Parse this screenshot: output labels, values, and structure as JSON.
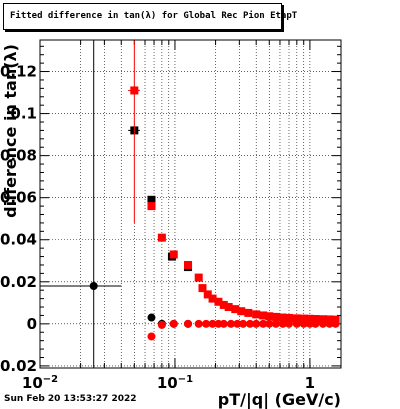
{
  "title": "Fitted difference in tan(λ) for Global Rec Pion EtapT",
  "footer": "Sun Feb 20 13:53:27 2022",
  "chart_data": {
    "type": "scatter",
    "title": "Fitted difference in tan(λ) for Global Rec Pion EtapT",
    "xlabel": "pT/|q| (GeV/c)",
    "ylabel": "difference in tan(λ)",
    "x_scale": "log",
    "xlim": [
      0.01,
      1.7
    ],
    "ylim": [
      -0.021,
      0.135
    ],
    "grid": true,
    "x_ticks": [
      {
        "label": "10",
        "sup": "−2",
        "value": 0.01
      },
      {
        "label": "10",
        "sup": "−1",
        "value": 0.1
      },
      {
        "label": "1",
        "sup": "",
        "value": 1
      }
    ],
    "y_ticks": [
      -0.02,
      0,
      0.02,
      0.04,
      0.06,
      0.08,
      0.1,
      0.12
    ],
    "y_tick_labels": [
      "−0.02",
      "0",
      "0.02",
      "0.04",
      "0.06",
      "0.08",
      "0.1",
      "0.12"
    ],
    "series": [
      {
        "color": "#000000",
        "marker": "circle",
        "points": [
          {
            "x": 0.025,
            "y": 0.018,
            "xlo": 0.01,
            "xhi": 0.04,
            "ylo": -0.021,
            "yhi": 0.135
          }
        ]
      },
      {
        "color": "#000000",
        "marker": "square",
        "points": [
          {
            "x": 0.05,
            "y": 0.092,
            "xlo": 0.045,
            "xhi": 0.055
          },
          {
            "x": 0.067,
            "y": 0.059,
            "xlo": 0.063,
            "xhi": 0.071
          },
          {
            "x": 0.095,
            "y": 0.032,
            "xlo": 0.089,
            "xhi": 0.101
          },
          {
            "x": 0.125,
            "y": 0.027,
            "xlo": 0.117,
            "xhi": 0.133
          }
        ]
      },
      {
        "color": "#000000",
        "marker": "circle",
        "points": [
          {
            "x": 0.067,
            "y": 0.003,
            "xlo": 0.063,
            "xhi": 0.071
          },
          {
            "x": 0.08,
            "y": 0.0,
            "xlo": 0.075,
            "xhi": 0.085
          },
          {
            "x": 0.098,
            "y": 0.0,
            "xlo": 0.092,
            "xhi": 0.104
          },
          {
            "x": 0.125,
            "y": 0.0,
            "xlo": 0.117,
            "xhi": 0.133
          }
        ]
      },
      {
        "color": "#ff0000",
        "marker": "square",
        "points": [
          {
            "x": 0.05,
            "y": 0.111,
            "xlo": 0.045,
            "xhi": 0.055,
            "ylo": 0.048,
            "yhi": 0.135
          },
          {
            "x": 0.067,
            "y": 0.056,
            "xlo": 0.063,
            "xhi": 0.071
          },
          {
            "x": 0.08,
            "y": 0.041,
            "xlo": 0.075,
            "xhi": 0.085
          },
          {
            "x": 0.098,
            "y": 0.033,
            "xlo": 0.092,
            "xhi": 0.104
          },
          {
            "x": 0.125,
            "y": 0.028,
            "xlo": 0.117,
            "xhi": 0.133
          },
          {
            "x": 0.15,
            "y": 0.022
          },
          {
            "x": 0.16,
            "y": 0.017
          },
          {
            "x": 0.175,
            "y": 0.014
          },
          {
            "x": 0.19,
            "y": 0.012
          },
          {
            "x": 0.21,
            "y": 0.0105
          },
          {
            "x": 0.23,
            "y": 0.009
          },
          {
            "x": 0.25,
            "y": 0.008
          },
          {
            "x": 0.28,
            "y": 0.007
          },
          {
            "x": 0.31,
            "y": 0.006
          },
          {
            "x": 0.35,
            "y": 0.0052
          },
          {
            "x": 0.4,
            "y": 0.0045
          },
          {
            "x": 0.45,
            "y": 0.004
          },
          {
            "x": 0.5,
            "y": 0.0036
          },
          {
            "x": 0.56,
            "y": 0.0033
          },
          {
            "x": 0.63,
            "y": 0.003
          },
          {
            "x": 0.7,
            "y": 0.0028
          },
          {
            "x": 0.8,
            "y": 0.0026
          },
          {
            "x": 0.9,
            "y": 0.0025
          },
          {
            "x": 1.0,
            "y": 0.0024
          },
          {
            "x": 1.1,
            "y": 0.0023
          },
          {
            "x": 1.25,
            "y": 0.0022
          },
          {
            "x": 1.4,
            "y": 0.0021
          },
          {
            "x": 1.55,
            "y": 0.002
          }
        ]
      },
      {
        "color": "#ff0000",
        "marker": "circle",
        "points": [
          {
            "x": 0.067,
            "y": -0.006
          },
          {
            "x": 0.08,
            "y": -0.0005
          },
          {
            "x": 0.098,
            "y": 0.0
          },
          {
            "x": 0.125,
            "y": 0.0
          },
          {
            "x": 0.15,
            "y": 0.0
          },
          {
            "x": 0.17,
            "y": 0.0
          },
          {
            "x": 0.19,
            "y": 0.0
          },
          {
            "x": 0.21,
            "y": 0.0
          },
          {
            "x": 0.23,
            "y": 0.0
          },
          {
            "x": 0.26,
            "y": 0.0
          },
          {
            "x": 0.29,
            "y": 0.0
          },
          {
            "x": 0.32,
            "y": 0.0
          },
          {
            "x": 0.36,
            "y": 0.0
          },
          {
            "x": 0.4,
            "y": 0.0
          },
          {
            "x": 0.45,
            "y": 0.0
          },
          {
            "x": 0.5,
            "y": 0.0
          },
          {
            "x": 0.56,
            "y": 0.0
          },
          {
            "x": 0.63,
            "y": 0.0
          },
          {
            "x": 0.7,
            "y": 0.0
          },
          {
            "x": 0.8,
            "y": 0.0
          },
          {
            "x": 0.9,
            "y": 0.0
          },
          {
            "x": 1.0,
            "y": 0.0
          },
          {
            "x": 1.1,
            "y": 0.0
          },
          {
            "x": 1.25,
            "y": 0.0
          },
          {
            "x": 1.4,
            "y": 0.0
          },
          {
            "x": 1.55,
            "y": 0.0
          }
        ]
      }
    ]
  }
}
